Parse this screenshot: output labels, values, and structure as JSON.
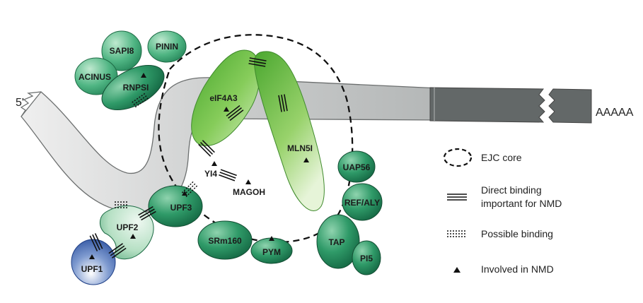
{
  "labels": {
    "five_prime": "5'",
    "poly_a": "AAAAA"
  },
  "proteins": {
    "sap18": "SAPI8",
    "pinin": "PININ",
    "acinus": "ACINUS",
    "rnps1": "RNPSI",
    "eif4a3": "eIF4A3",
    "mln51": "MLN5I",
    "y14": "YI4",
    "magoh": "MAGOH",
    "upf3": "UPF3",
    "upf2": "UPF2",
    "upf1": "UPF1",
    "srm160": "SRm160",
    "pym": "PYM",
    "uap56": "UAP56",
    "ref_aly": "REF/ALY",
    "tap": "TAP",
    "p15": "PI5"
  },
  "legend": {
    "ejc_core": "EJC core",
    "direct_binding_1": "Direct binding",
    "direct_binding_2": "important for NMD",
    "possible_binding": "Possible binding",
    "involved_nmd": "Involved in NMD"
  },
  "colors": {
    "mrna_light": "#d9dcdc",
    "mrna_dark": "#5c6161",
    "green_dark": "#1f7a52",
    "green_light": "#6cc24a",
    "blue": "#2d55a6"
  }
}
